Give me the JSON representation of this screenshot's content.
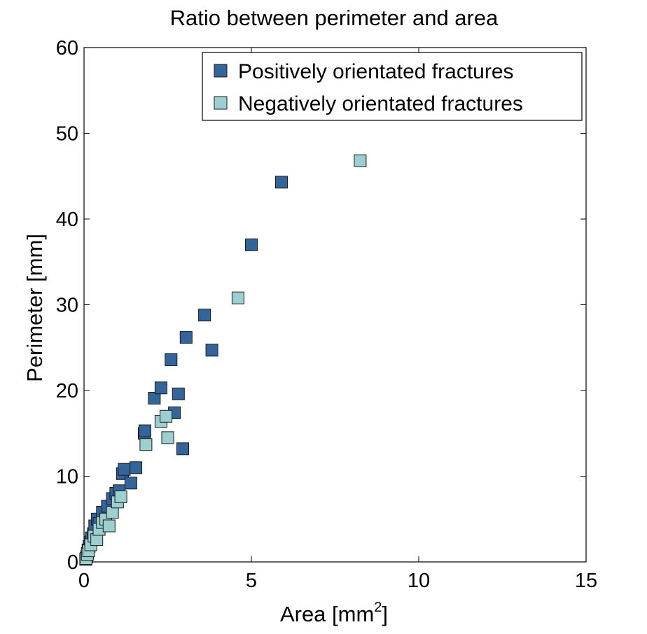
{
  "chart_data": {
    "type": "scatter",
    "title": "Ratio between perimeter and area",
    "xlabel": {
      "base": "Area [mm",
      "sup": "2",
      "close": "]"
    },
    "ylabel": "Perimeter [mm]",
    "xlim": [
      0,
      15
    ],
    "ylim": [
      0,
      60
    ],
    "xticks": [
      "0",
      "5",
      "10",
      "15"
    ],
    "yticks": [
      "0",
      "10",
      "20",
      "30",
      "40",
      "50",
      "60"
    ],
    "grid": false,
    "legend_position": "top-right",
    "marker": "square",
    "series": [
      {
        "name": "Positively orientated fractures",
        "color": "#35649a",
        "points": [
          [
            0.05,
            0.3
          ],
          [
            0.08,
            0.6
          ],
          [
            0.1,
            1.0
          ],
          [
            0.12,
            1.4
          ],
          [
            0.15,
            1.8
          ],
          [
            0.18,
            2.3
          ],
          [
            0.22,
            2.8
          ],
          [
            0.28,
            3.3
          ],
          [
            0.32,
            4.2
          ],
          [
            0.4,
            5.0
          ],
          [
            0.45,
            4.5
          ],
          [
            0.55,
            5.8
          ],
          [
            0.7,
            6.5
          ],
          [
            0.85,
            7.4
          ],
          [
            0.95,
            8.0
          ],
          [
            1.05,
            8.3
          ],
          [
            1.15,
            10.3
          ],
          [
            1.2,
            10.8
          ],
          [
            1.4,
            9.2
          ],
          [
            1.55,
            11.0
          ],
          [
            1.8,
            15.0
          ],
          [
            1.82,
            15.3
          ],
          [
            2.1,
            19.1
          ],
          [
            2.3,
            20.3
          ],
          [
            2.6,
            23.6
          ],
          [
            2.7,
            17.4
          ],
          [
            2.82,
            19.6
          ],
          [
            2.95,
            13.2
          ],
          [
            3.05,
            26.2
          ],
          [
            3.6,
            28.8
          ],
          [
            3.82,
            24.7
          ],
          [
            5.0,
            37.0
          ],
          [
            5.9,
            44.3
          ]
        ]
      },
      {
        "name": "Negatively orientated fractures",
        "color": "#9ecfd0",
        "points": [
          [
            0.06,
            0.4
          ],
          [
            0.1,
            0.9
          ],
          [
            0.14,
            1.3
          ],
          [
            0.2,
            2.0
          ],
          [
            0.3,
            3.0
          ],
          [
            0.38,
            2.6
          ],
          [
            0.45,
            3.8
          ],
          [
            0.55,
            4.6
          ],
          [
            0.65,
            5.0
          ],
          [
            0.75,
            4.2
          ],
          [
            0.85,
            5.8
          ],
          [
            1.0,
            7.0
          ],
          [
            1.1,
            7.6
          ],
          [
            1.85,
            13.7
          ],
          [
            2.3,
            16.4
          ],
          [
            2.45,
            17.0
          ],
          [
            2.5,
            14.5
          ],
          [
            4.6,
            30.8
          ],
          [
            8.25,
            46.8
          ]
        ]
      }
    ]
  }
}
